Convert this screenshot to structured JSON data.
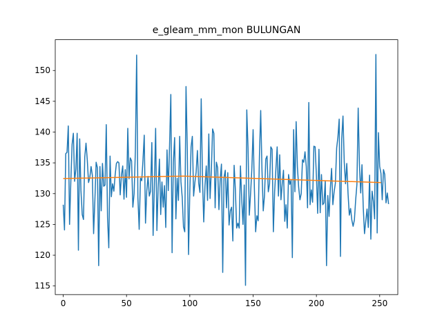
{
  "chart_data": {
    "type": "line",
    "title": "e_gleam_mm_mon BULUNGAN",
    "xlabel": "",
    "ylabel": "",
    "xlim": [
      -6.3,
      264.3
    ],
    "ylim": [
      113.6,
      155.0
    ],
    "xticks": [
      0,
      50,
      100,
      150,
      200,
      250
    ],
    "yticks": [
      115,
      120,
      125,
      130,
      135,
      140,
      145,
      150
    ],
    "grid": false,
    "legend": "none",
    "series": [
      {
        "color": "#1f77b4",
        "values": [
          128.2,
          124.1,
          136.5,
          136.7,
          141.0,
          125.0,
          131.9,
          138.0,
          139.8,
          132.0,
          134.0,
          139.8,
          120.8,
          138.9,
          130.5,
          126.6,
          125.8,
          135.9,
          138.2,
          135.5,
          131.8,
          132.6,
          134.4,
          133.0,
          123.5,
          128.9,
          135.1,
          134.2,
          118.3,
          134.4,
          127.2,
          134.9,
          131.2,
          131.4,
          141.2,
          126.1,
          121.2,
          136.1,
          129.5,
          131.6,
          130.4,
          133.0,
          134.9,
          135.2,
          135.0,
          129.8,
          133.0,
          134.5,
          129.1,
          133.9,
          129.4,
          140.6,
          132.4,
          135.8,
          135.3,
          127.8,
          130.0,
          137.0,
          152.5,
          129.3,
          124.2,
          132.5,
          132.1,
          135.4,
          139.5,
          125.2,
          130.4,
          132.8,
          129.6,
          130.4,
          138.3,
          123.2,
          131.3,
          140.6,
          124.0,
          131.0,
          135.6,
          126.6,
          131.9,
          127.8,
          131.3,
          124.5,
          137.1,
          130.5,
          137.8,
          146.1,
          120.4,
          135.1,
          139.1,
          125.9,
          132.5,
          128.9,
          139.3,
          131.9,
          129.4,
          124.6,
          123.8,
          147.4,
          137.3,
          120.1,
          130.4,
          137.6,
          139.3,
          129.6,
          131.8,
          133.5,
          137.0,
          131.7,
          130.2,
          145.4,
          132.5,
          125.4,
          131.3,
          134.5,
          128.9,
          139.7,
          129.2,
          133.7,
          140.5,
          139.8,
          127.7,
          135.1,
          134.2,
          127.4,
          132.4,
          134.8,
          117.2,
          132.6,
          133.8,
          127.7,
          133.4,
          124.9,
          127.2,
          127.8,
          122.3,
          134.6,
          130.6,
          124.4,
          125.2,
          124.4,
          134.5,
          129.1,
          125.0,
          131.4,
          115.1,
          143.6,
          137.4,
          126.5,
          130.0,
          134.0,
          140.4,
          130.9,
          123.8,
          126.4,
          125.6,
          136.1,
          143.5,
          133.9,
          127.2,
          129.7,
          135.6,
          136.1,
          130.3,
          131.6,
          137.6,
          137.2,
          123.8,
          130.3,
          134.0,
          137.6,
          129.6,
          136.3,
          129.0,
          131.6,
          133.8,
          125.5,
          128.2,
          124.4,
          133.1,
          131.5,
          132.2,
          119.6,
          140.4,
          130.3,
          141.7,
          134.3,
          131.0,
          129.0,
          130.0,
          135.5,
          135.1,
          136.8,
          134.4,
          127.7,
          144.8,
          128.2,
          130.6,
          128.6,
          137.7,
          137.6,
          132.9,
          126.8,
          137.2,
          126.9,
          133.1,
          128.2,
          128.5,
          132.1,
          118.3,
          129.7,
          126.3,
          130.9,
          134.1,
          128.2,
          130.3,
          131.7,
          137.4,
          139.2,
          142.1,
          119.8,
          138.9,
          142.6,
          135.1,
          131.6,
          134.9,
          130.0,
          126.5,
          127.6,
          125.7,
          124.7,
          125.7,
          128.9,
          131.5,
          143.9,
          134.6,
          130.1,
          134.7,
          127.8,
          123.5,
          125.5,
          127.5,
          124.5,
          133.0,
          122.6,
          130.4,
          128.8,
          125.9,
          152.6,
          123.6,
          139.9,
          134.4,
          133.3,
          129.0,
          133.9,
          133.1,
          128.5,
          130.1,
          128.3
        ]
      },
      {
        "color": "#ff7f0e",
        "trend": {
          "x": [
            0,
            95,
            251
          ],
          "y": [
            132.45,
            132.85,
            131.8
          ]
        }
      }
    ]
  }
}
